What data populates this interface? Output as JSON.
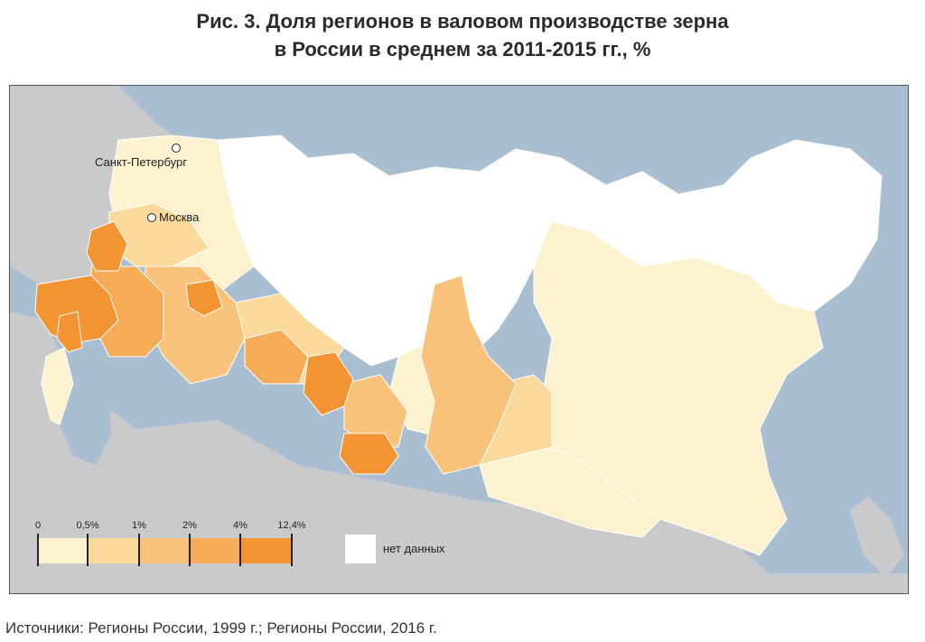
{
  "title": {
    "line1": "Рис. 3. Доля регионов в валовом производстве зерна",
    "line2": "в России в среднем за 2011-2015 гг., %"
  },
  "cities": {
    "spb": "Санкт-Петербург",
    "moscow": "Москва"
  },
  "legend": {
    "ticks": [
      "0",
      "0,5%",
      "1%",
      "2%",
      "4%",
      "12,4%"
    ],
    "colors": [
      "#fdf2cf",
      "#fad99b",
      "#f8c27a",
      "#f6ab57",
      "#f29431"
    ],
    "no_data_label": "нет данных",
    "no_data_color": "#ffffff"
  },
  "colors": {
    "water": "#a9bfd1",
    "foreign_land": "#c9cacb",
    "border": "#ffffff"
  },
  "source": "Источники: Регионы России, 1999 г.; Регионы России, 2016 г."
}
